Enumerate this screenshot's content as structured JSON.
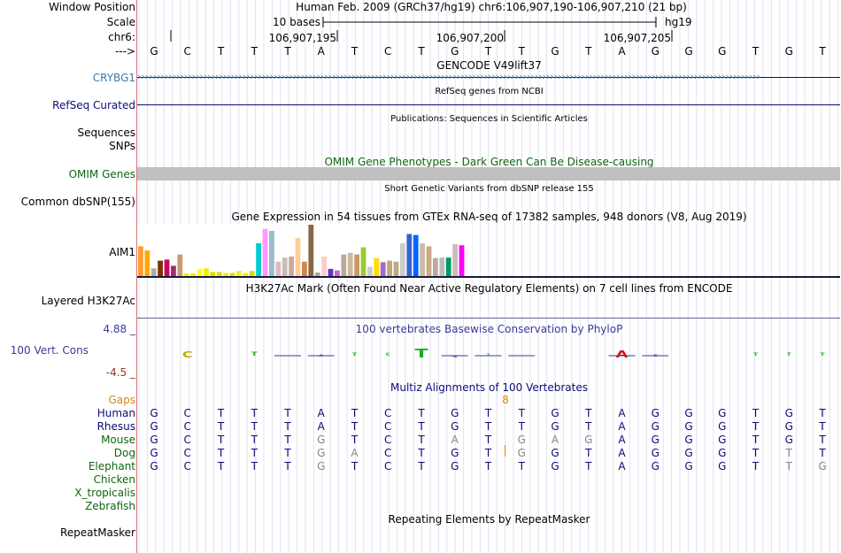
{
  "header": {
    "window_position_label": "Window Position",
    "assembly_text": "Human Feb. 2009 (GRCh37/hg19)   chr6:106,907,190-106,907,210 (21 bp)",
    "scale_label": "Scale",
    "scale_text": "10 bases",
    "scale_db": "hg19",
    "chrom_label": "chr6:",
    "ticks": [
      "106,907,195",
      "106,907,200",
      "106,907,205"
    ],
    "strand_label": "--->"
  },
  "reference_sequence": [
    "G",
    "C",
    "T",
    "T",
    "T",
    "A",
    "T",
    "C",
    "T",
    "G",
    "T",
    "T",
    "G",
    "T",
    "A",
    "G",
    "G",
    "G",
    "T",
    "G",
    "T"
  ],
  "tracks": {
    "gencode": {
      "title": "GENCODE V49lift37",
      "gene": "CRYBG1",
      "chevron": "›"
    },
    "refseq": {
      "title": "RefSeq genes from NCBI",
      "label": "RefSeq Curated"
    },
    "publications": {
      "title": "Publications: Sequences in Scientific Articles",
      "label": "Sequences"
    },
    "snps": {
      "label": "SNPs"
    },
    "omim": {
      "title": "OMIM Gene Phenotypes - Dark Green Can Be Disease-causing",
      "label": "OMIM Genes"
    },
    "dbsnp": {
      "title": "Short Genetic Variants from dbSNP release 155",
      "label": "Common dbSNP(155)"
    },
    "gtex": {
      "title": "Gene Expression in 54 tissues from GTEx RNA-seq of 17382 samples, 948 donors (V8, Aug 2019)",
      "label": "AIM1",
      "bars": [
        {
          "v": 0.58,
          "c": "#ff9933"
        },
        {
          "v": 0.5,
          "c": "#ffaa00"
        },
        {
          "v": 0.15,
          "c": "#aaaaaa"
        },
        {
          "v": 0.3,
          "c": "#7f3300"
        },
        {
          "v": 0.32,
          "c": "#cc0066"
        },
        {
          "v": 0.2,
          "c": "#993366"
        },
        {
          "v": 0.42,
          "c": "#cc9977"
        },
        {
          "v": 0.05,
          "c": "#eeee00"
        },
        {
          "v": 0.05,
          "c": "#eeee00"
        },
        {
          "v": 0.14,
          "c": "#ffff00"
        },
        {
          "v": 0.15,
          "c": "#eeee00"
        },
        {
          "v": 0.08,
          "c": "#dddd00"
        },
        {
          "v": 0.08,
          "c": "#dddd00"
        },
        {
          "v": 0.06,
          "c": "#eeee00"
        },
        {
          "v": 0.06,
          "c": "#dddd00"
        },
        {
          "v": 0.1,
          "c": "#eeee22"
        },
        {
          "v": 0.06,
          "c": "#eeee00"
        },
        {
          "v": 0.1,
          "c": "#dddd00"
        },
        {
          "v": 0.64,
          "c": "#00cccc"
        },
        {
          "v": 0.92,
          "c": "#ff99ff"
        },
        {
          "v": 0.88,
          "c": "#99bbcc"
        },
        {
          "v": 0.28,
          "c": "#ddbbbb"
        },
        {
          "v": 0.36,
          "c": "#ccbbbb"
        },
        {
          "v": 0.38,
          "c": "#ccaa99"
        },
        {
          "v": 0.74,
          "c": "#ffcc99"
        },
        {
          "v": 0.28,
          "c": "#cc8855"
        },
        {
          "v": 1.0,
          "c": "#886644"
        },
        {
          "v": 0.07,
          "c": "#aaaaaa"
        },
        {
          "v": 0.38,
          "c": "#ffcccc"
        },
        {
          "v": 0.14,
          "c": "#6633cc"
        },
        {
          "v": 0.11,
          "c": "#cc66cc"
        },
        {
          "v": 0.42,
          "c": "#bbaa99"
        },
        {
          "v": 0.45,
          "c": "#ccbb99"
        },
        {
          "v": 0.42,
          "c": "#cc9966"
        },
        {
          "v": 0.56,
          "c": "#99cc33"
        },
        {
          "v": 0.18,
          "c": "#cccccc"
        },
        {
          "v": 0.35,
          "c": "#ffdd00"
        },
        {
          "v": 0.27,
          "c": "#aa66cc"
        },
        {
          "v": 0.3,
          "c": "#bbaa77"
        },
        {
          "v": 0.28,
          "c": "#bbaa88"
        },
        {
          "v": 0.64,
          "c": "#cccccc"
        },
        {
          "v": 0.82,
          "c": "#3366cc"
        },
        {
          "v": 0.8,
          "c": "#0066ff"
        },
        {
          "v": 0.64,
          "c": "#ccbbaa"
        },
        {
          "v": 0.58,
          "c": "#ccaa88"
        },
        {
          "v": 0.35,
          "c": "#bbaa99"
        },
        {
          "v": 0.36,
          "c": "#bbbbbb"
        },
        {
          "v": 0.36,
          "c": "#009966"
        },
        {
          "v": 0.62,
          "c": "#ccbbbb"
        },
        {
          "v": 0.6,
          "c": "#ff00ff"
        }
      ]
    },
    "h3k27ac": {
      "title": "H3K27Ac Mark (Often Found Near Active Regulatory Elements) on 7 cell lines from ENCODE",
      "label": "Layered H3K27Ac"
    },
    "phylop": {
      "title": "100 vertebrates Basewise Conservation by PhyloP",
      "label": "100 Vert. Cons",
      "max": "4.88 _",
      "min": "-4.5 _"
    },
    "multiz": {
      "title": "Multiz Alignments of 100 Vertebrates",
      "gaps_label": "Gaps",
      "gap_marker": "8",
      "species": [
        {
          "name": "Human",
          "seq": [
            "G",
            "C",
            "T",
            "T",
            "T",
            "A",
            "T",
            "C",
            "T",
            "G",
            "T",
            "T",
            "G",
            "T",
            "A",
            "G",
            "G",
            "G",
            "T",
            "G",
            "T"
          ],
          "diff": []
        },
        {
          "name": "Rhesus",
          "seq": [
            "G",
            "C",
            "T",
            "T",
            "T",
            "A",
            "T",
            "C",
            "T",
            "G",
            "T",
            "T",
            "G",
            "T",
            "A",
            "G",
            "G",
            "G",
            "T",
            "G",
            "T"
          ],
          "diff": []
        },
        {
          "name": "Mouse",
          "seq": [
            "G",
            "C",
            "T",
            "T",
            "T",
            "G",
            "T",
            "C",
            "T",
            "A",
            "T",
            "G",
            "A",
            "G",
            "A",
            "G",
            "G",
            "G",
            "T",
            "G",
            "T"
          ],
          "diff": [
            5,
            9,
            11,
            12,
            13
          ]
        },
        {
          "name": "Dog",
          "seq": [
            "G",
            "C",
            "T",
            "T",
            "T",
            "G",
            "A",
            "C",
            "T",
            "G",
            "T",
            "G",
            "G",
            "T",
            "A",
            "G",
            "G",
            "G",
            "T",
            "T",
            "T"
          ],
          "diff": [
            5,
            6,
            11,
            19
          ]
        },
        {
          "name": "Elephant",
          "seq": [
            "G",
            "C",
            "T",
            "T",
            "T",
            "G",
            "T",
            "C",
            "T",
            "G",
            "T",
            "T",
            "G",
            "T",
            "A",
            "G",
            "G",
            "G",
            "T",
            "T",
            "G"
          ],
          "diff": [
            5,
            19,
            20
          ]
        },
        {
          "name": "Chicken",
          "seq": [],
          "diff": []
        },
        {
          "name": "X_tropicalis",
          "seq": [],
          "diff": []
        },
        {
          "name": "Zebrafish",
          "seq": [],
          "diff": []
        }
      ]
    },
    "repeatmasker": {
      "title": "Repeating Elements by RepeatMasker",
      "label": "RepeatMasker"
    }
  },
  "colors": {
    "gencode": "#3a7aaf",
    "refseq": "#0c0c78",
    "omim": "#116611",
    "phylop_pos": "#3a3a9a",
    "phylop_neg": "#993322",
    "gaps": "#d8851a",
    "species": "#0c0c78",
    "green_label": "#116611"
  }
}
